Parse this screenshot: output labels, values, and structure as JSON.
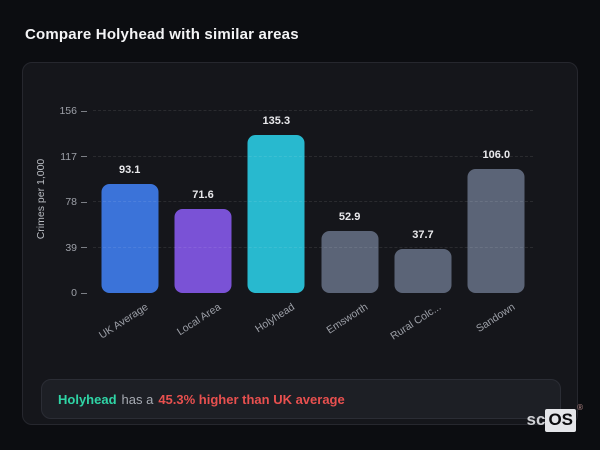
{
  "page": {
    "title": "Compare Holyhead with similar areas"
  },
  "chart_data": {
    "type": "bar",
    "title": "",
    "xlabel": "",
    "ylabel": "Crimes per 1,000",
    "categories": [
      "UK Average",
      "Local Area",
      "Holyhead",
      "Emsworth",
      "Rural Colc...",
      "Sandown"
    ],
    "values": [
      93.1,
      71.6,
      135.3,
      52.9,
      37.7,
      106.0
    ],
    "value_labels": [
      "93.1",
      "71.6",
      "135.3",
      "52.9",
      "37.7",
      "106.0"
    ],
    "bar_colors": [
      "#3b73d9",
      "#7a52d6",
      "#28b9cf",
      "#5b6477",
      "#5b6477",
      "#5b6477"
    ],
    "yticks": [
      0,
      39,
      78,
      117,
      156
    ],
    "ylim": [
      0,
      156
    ],
    "grid": "dashed-horizontal",
    "legend": "none"
  },
  "note": {
    "area_name": "Holyhead",
    "connector": "has a",
    "stat_text": "45.3% higher than UK average"
  },
  "logo": {
    "prefix": "sc",
    "suffix": "OS",
    "registered_mark": "®"
  },
  "colors": {
    "page_bg": "#0c0d11",
    "card_bg": "#15161b",
    "card_border": "#26272e",
    "note_bg": "#1d1f25",
    "note_border": "#2b2d35",
    "accent_teal": "#2fd5a6",
    "accent_red": "#e8504f",
    "axis_text": "#9da0a8",
    "value_text": "#e9e9ec"
  }
}
